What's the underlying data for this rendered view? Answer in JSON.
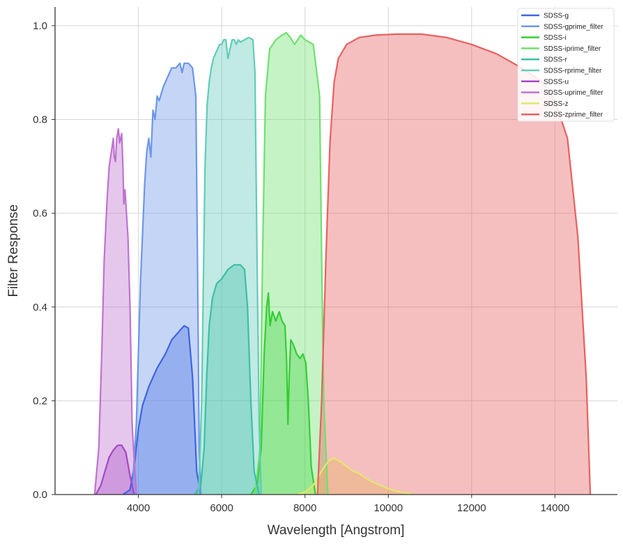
{
  "chart_data": {
    "type": "area",
    "xlabel": "Wavelength [Angstrom]",
    "ylabel": "Filter Response",
    "xlim": [
      2000,
      15500
    ],
    "ylim": [
      0,
      1.04
    ],
    "xticks": [
      4000,
      6000,
      8000,
      10000,
      12000,
      14000
    ],
    "yticks": [
      0.0,
      0.2,
      0.4,
      0.6,
      0.8,
      1.0
    ],
    "xtick_labels": [
      "4000",
      "6000",
      "8000",
      "10000",
      "12000",
      "14000"
    ],
    "ytick_labels": [
      "0.0",
      "0.2",
      "0.4",
      "0.6",
      "0.8",
      "1.0"
    ],
    "grid": true,
    "legend_position": "top-right",
    "series": [
      {
        "name": "SDSS-g",
        "color": "#3d64e0",
        "points": [
          [
            3630,
            0
          ],
          [
            3800,
            0.01
          ],
          [
            3900,
            0.06
          ],
          [
            4000,
            0.14
          ],
          [
            4100,
            0.19
          ],
          [
            4250,
            0.23
          ],
          [
            4450,
            0.27
          ],
          [
            4650,
            0.3
          ],
          [
            4800,
            0.33
          ],
          [
            5000,
            0.35
          ],
          [
            5100,
            0.36
          ],
          [
            5200,
            0.355
          ],
          [
            5300,
            0.25
          ],
          [
            5400,
            0.05
          ],
          [
            5500,
            0
          ]
        ]
      },
      {
        "name": "SDSS-gprime_filter",
        "color": "#6d96e8",
        "points": [
          [
            3850,
            0
          ],
          [
            3950,
            0.15
          ],
          [
            4050,
            0.45
          ],
          [
            4150,
            0.66
          ],
          [
            4200,
            0.73
          ],
          [
            4250,
            0.76
          ],
          [
            4300,
            0.72
          ],
          [
            4350,
            0.82
          ],
          [
            4400,
            0.8
          ],
          [
            4450,
            0.85
          ],
          [
            4500,
            0.84
          ],
          [
            4600,
            0.87
          ],
          [
            4700,
            0.89
          ],
          [
            4800,
            0.91
          ],
          [
            4900,
            0.91
          ],
          [
            5000,
            0.92
          ],
          [
            5050,
            0.9
          ],
          [
            5100,
            0.92
          ],
          [
            5200,
            0.92
          ],
          [
            5300,
            0.91
          ],
          [
            5380,
            0.85
          ],
          [
            5420,
            0.5
          ],
          [
            5460,
            0.1
          ],
          [
            5500,
            0
          ]
        ]
      },
      {
        "name": "SDSS-i",
        "color": "#35cd35",
        "points": [
          [
            6700,
            0
          ],
          [
            6850,
            0.02
          ],
          [
            6950,
            0.1
          ],
          [
            7020,
            0.3
          ],
          [
            7080,
            0.4
          ],
          [
            7120,
            0.43
          ],
          [
            7160,
            0.36
          ],
          [
            7220,
            0.39
          ],
          [
            7300,
            0.37
          ],
          [
            7380,
            0.39
          ],
          [
            7450,
            0.37
          ],
          [
            7520,
            0.36
          ],
          [
            7560,
            0.28
          ],
          [
            7590,
            0.15
          ],
          [
            7620,
            0.25
          ],
          [
            7660,
            0.33
          ],
          [
            7720,
            0.32
          ],
          [
            7800,
            0.3
          ],
          [
            7880,
            0.29
          ],
          [
            7950,
            0.3
          ],
          [
            8020,
            0.28
          ],
          [
            8080,
            0.2
          ],
          [
            8150,
            0.06
          ],
          [
            8250,
            0
          ]
        ]
      },
      {
        "name": "SDSS-iprime_filter",
        "color": "#6fe06f",
        "points": [
          [
            6800,
            0
          ],
          [
            6920,
            0.1
          ],
          [
            6980,
            0.5
          ],
          [
            7050,
            0.85
          ],
          [
            7150,
            0.95
          ],
          [
            7300,
            0.97
          ],
          [
            7450,
            0.98
          ],
          [
            7550,
            0.985
          ],
          [
            7650,
            0.975
          ],
          [
            7750,
            0.96
          ],
          [
            7900,
            0.98
          ],
          [
            8000,
            0.97
          ],
          [
            8200,
            0.96
          ],
          [
            8350,
            0.85
          ],
          [
            8400,
            0.5
          ],
          [
            8450,
            0.2
          ],
          [
            8550,
            0
          ]
        ]
      },
      {
        "name": "SDSS-r",
        "color": "#3cbfa6",
        "points": [
          [
            5350,
            0
          ],
          [
            5500,
            0.02
          ],
          [
            5580,
            0.1
          ],
          [
            5640,
            0.25
          ],
          [
            5700,
            0.36
          ],
          [
            5780,
            0.42
          ],
          [
            5880,
            0.45
          ],
          [
            6000,
            0.46
          ],
          [
            6150,
            0.48
          ],
          [
            6300,
            0.49
          ],
          [
            6450,
            0.49
          ],
          [
            6550,
            0.48
          ],
          [
            6620,
            0.4
          ],
          [
            6700,
            0.2
          ],
          [
            6780,
            0.05
          ],
          [
            6900,
            0
          ]
        ]
      },
      {
        "name": "SDSS-rprime_filter",
        "color": "#62cbb8",
        "points": [
          [
            5450,
            0
          ],
          [
            5520,
            0.2
          ],
          [
            5600,
            0.7
          ],
          [
            5650,
            0.83
          ],
          [
            5700,
            0.88
          ],
          [
            5750,
            0.91
          ],
          [
            5800,
            0.93
          ],
          [
            5850,
            0.94
          ],
          [
            5900,
            0.95
          ],
          [
            5950,
            0.96
          ],
          [
            6000,
            0.96
          ],
          [
            6050,
            0.97
          ],
          [
            6100,
            0.97
          ],
          [
            6150,
            0.93
          ],
          [
            6200,
            0.95
          ],
          [
            6250,
            0.97
          ],
          [
            6300,
            0.97
          ],
          [
            6350,
            0.96
          ],
          [
            6400,
            0.97
          ],
          [
            6450,
            0.965
          ],
          [
            6550,
            0.97
          ],
          [
            6650,
            0.975
          ],
          [
            6750,
            0.97
          ],
          [
            6800,
            0.9
          ],
          [
            6850,
            0.5
          ],
          [
            6900,
            0.15
          ],
          [
            6950,
            0
          ]
        ]
      },
      {
        "name": "SDSS-u",
        "color": "#a646c6",
        "points": [
          [
            2980,
            0
          ],
          [
            3100,
            0.02
          ],
          [
            3200,
            0.05
          ],
          [
            3300,
            0.08
          ],
          [
            3400,
            0.095
          ],
          [
            3500,
            0.105
          ],
          [
            3600,
            0.105
          ],
          [
            3700,
            0.09
          ],
          [
            3800,
            0.04
          ],
          [
            3900,
            0
          ]
        ]
      },
      {
        "name": "SDSS-uprime_filter",
        "color": "#bf72cf",
        "points": [
          [
            2950,
            0
          ],
          [
            3050,
            0.1
          ],
          [
            3120,
            0.3
          ],
          [
            3180,
            0.5
          ],
          [
            3250,
            0.63
          ],
          [
            3300,
            0.7
          ],
          [
            3350,
            0.73
          ],
          [
            3400,
            0.76
          ],
          [
            3420,
            0.72
          ],
          [
            3450,
            0.71
          ],
          [
            3480,
            0.76
          ],
          [
            3520,
            0.78
          ],
          [
            3550,
            0.75
          ],
          [
            3600,
            0.77
          ],
          [
            3630,
            0.7
          ],
          [
            3650,
            0.62
          ],
          [
            3680,
            0.65
          ],
          [
            3700,
            0.62
          ],
          [
            3750,
            0.55
          ],
          [
            3800,
            0.4
          ],
          [
            3850,
            0.15
          ],
          [
            3950,
            0
          ]
        ]
      },
      {
        "name": "SDSS-z",
        "color": "#e2e86a",
        "points": [
          [
            7800,
            0
          ],
          [
            8000,
            0.005
          ],
          [
            8200,
            0.02
          ],
          [
            8400,
            0.05
          ],
          [
            8550,
            0.07
          ],
          [
            8700,
            0.078
          ],
          [
            8850,
            0.07
          ],
          [
            9000,
            0.06
          ],
          [
            9150,
            0.05
          ],
          [
            9300,
            0.045
          ],
          [
            9450,
            0.035
          ],
          [
            9600,
            0.028
          ],
          [
            9800,
            0.02
          ],
          [
            10000,
            0.012
          ],
          [
            10300,
            0.005
          ],
          [
            10600,
            0
          ]
        ]
      },
      {
        "name": "SDSS-zprime_filter",
        "color": "#e86060",
        "points": [
          [
            8300,
            0
          ],
          [
            8400,
            0.2
          ],
          [
            8500,
            0.5
          ],
          [
            8600,
            0.75
          ],
          [
            8700,
            0.88
          ],
          [
            8800,
            0.93
          ],
          [
            9000,
            0.96
          ],
          [
            9300,
            0.975
          ],
          [
            9700,
            0.98
          ],
          [
            10200,
            0.982
          ],
          [
            10800,
            0.982
          ],
          [
            11400,
            0.975
          ],
          [
            12000,
            0.96
          ],
          [
            12600,
            0.94
          ],
          [
            13200,
            0.91
          ],
          [
            13700,
            0.88
          ],
          [
            14000,
            0.84
          ],
          [
            14300,
            0.76
          ],
          [
            14550,
            0.55
          ],
          [
            14750,
            0.25
          ],
          [
            14850,
            0
          ]
        ]
      }
    ]
  }
}
